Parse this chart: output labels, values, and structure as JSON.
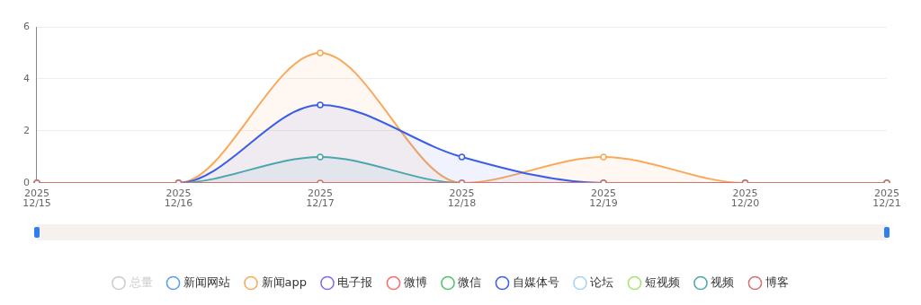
{
  "chart_data": {
    "type": "area",
    "categories": [
      "2025 12/15",
      "2025 12/16",
      "2025 12/17",
      "2025 12/18",
      "2025 12/19",
      "2025 12/20",
      "2025 12/21"
    ],
    "series": [
      {
        "name": "总量",
        "color": "#cccccc",
        "values": [
          null,
          null,
          null,
          null,
          null,
          null,
          null
        ]
      },
      {
        "name": "新闻网站",
        "color": "#5b9bf5",
        "values": [
          null,
          null,
          null,
          null,
          null,
          null,
          null
        ]
      },
      {
        "name": "新闻app",
        "color": "#f9a95a",
        "values": [
          0,
          0,
          5,
          0,
          1,
          0,
          0
        ]
      },
      {
        "name": "电子报",
        "color": "#7b6cf0",
        "values": [
          null,
          null,
          null,
          null,
          null,
          null,
          null
        ]
      },
      {
        "name": "微博",
        "color": "#f56c6c",
        "values": [
          null,
          null,
          null,
          null,
          null,
          null,
          null
        ]
      },
      {
        "name": "微信",
        "color": "#4cc46a",
        "values": [
          null,
          null,
          null,
          null,
          null,
          null,
          null
        ]
      },
      {
        "name": "自媒体号",
        "color": "#3a5ee8",
        "values": [
          0,
          0,
          3,
          1,
          0,
          0,
          0
        ]
      },
      {
        "name": "论坛",
        "color": "#a8d2f8",
        "values": [
          null,
          null,
          null,
          null,
          null,
          null,
          null
        ]
      },
      {
        "name": "短视频",
        "color": "#a6e36a",
        "values": [
          null,
          null,
          null,
          null,
          null,
          null,
          null
        ]
      },
      {
        "name": "视频",
        "color": "#4aa8ad",
        "values": [
          0,
          0,
          1,
          0,
          0,
          0,
          0
        ]
      },
      {
        "name": "博客",
        "type": "line",
        "color": "#d0756f",
        "values": [
          0,
          0,
          0,
          0,
          0,
          0,
          0
        ]
      }
    ],
    "ylim": [
      0,
      6
    ],
    "yticks": [
      0,
      2,
      4,
      6
    ],
    "grid": "y",
    "legend": "bottom",
    "marker": "circle",
    "line_style": "solid"
  }
}
